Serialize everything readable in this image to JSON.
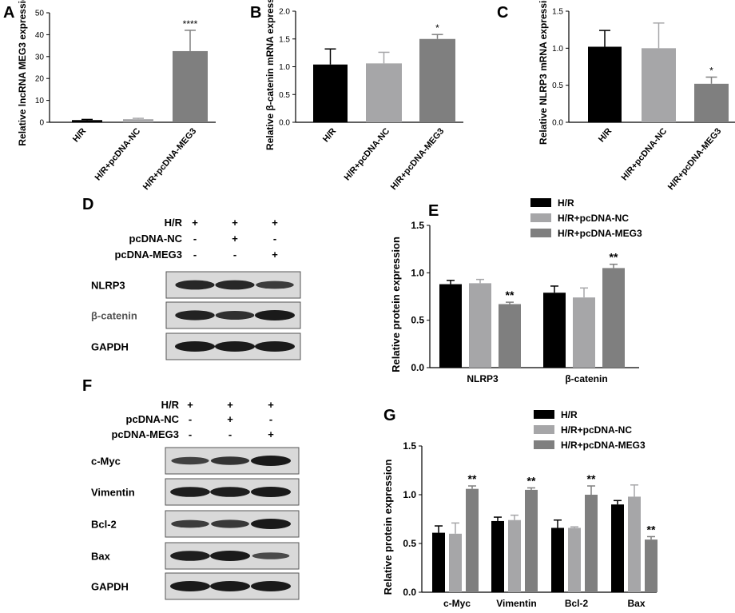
{
  "colors": {
    "c1": "#000000",
    "c2": "#a6a6a8",
    "c3": "#7f7f7f",
    "axis": "#000000"
  },
  "chart_data": [
    {
      "panel": "A",
      "type": "bar",
      "ylabel": "Relative lncRNA MEG3 expression",
      "ylim": [
        0,
        50
      ],
      "yticks": [
        0,
        10,
        20,
        30,
        40,
        50
      ],
      "categories": [
        "H/R",
        "H/R+pcDNA-NC",
        "H/R+pcDNA-MEG3"
      ],
      "values": [
        1.0,
        1.4,
        32.5
      ],
      "errors": [
        0.3,
        0.4,
        9.5
      ],
      "annotations": [
        "",
        "",
        "****"
      ]
    },
    {
      "panel": "B",
      "type": "bar",
      "ylabel": "Relative β-catenin mRNA expression",
      "ylim": [
        0,
        2.0
      ],
      "yticks": [
        "0.0",
        "0.5",
        "1.0",
        "1.5",
        "2.0"
      ],
      "categories": [
        "H/R",
        "H/R+pcDNA-NC",
        "H/R+pcDNA-MEG3"
      ],
      "values": [
        1.04,
        1.06,
        1.5
      ],
      "errors": [
        0.28,
        0.2,
        0.08
      ],
      "annotations": [
        "",
        "",
        "*"
      ]
    },
    {
      "panel": "C",
      "type": "bar",
      "ylabel": "Relative NLRP3 mRNA expression",
      "ylim": [
        0,
        1.5
      ],
      "yticks": [
        "0.0",
        "0.5",
        "1.0",
        "1.5"
      ],
      "categories": [
        "H/R",
        "H/R+pcDNA-NC",
        "H/R+pcDNA-MEG3"
      ],
      "values": [
        1.02,
        1.0,
        0.52
      ],
      "errors": [
        0.22,
        0.34,
        0.09
      ],
      "annotations": [
        "",
        "",
        "*"
      ]
    },
    {
      "panel": "E",
      "type": "bar",
      "ylabel": "Relative protein expression",
      "ylim": [
        0,
        1.5
      ],
      "yticks": [
        "0.0",
        "0.5",
        "1.0",
        "1.5"
      ],
      "categories": [
        "NLRP3",
        "β-catenin"
      ],
      "legend": [
        "H/R",
        "H/R+pcDNA-NC",
        "H/R+pcDNA-MEG3"
      ],
      "series": [
        {
          "name": "H/R",
          "values": [
            0.88,
            0.79
          ],
          "errors": [
            0.04,
            0.07
          ]
        },
        {
          "name": "H/R+pcDNA-NC",
          "values": [
            0.89,
            0.74
          ],
          "errors": [
            0.04,
            0.1
          ]
        },
        {
          "name": "H/R+pcDNA-MEG3",
          "values": [
            0.67,
            1.05
          ],
          "errors": [
            0.02,
            0.04
          ]
        }
      ],
      "annotations": [
        [
          "",
          "",
          "**"
        ],
        [
          "",
          "",
          "**"
        ]
      ]
    },
    {
      "panel": "G",
      "type": "bar",
      "ylabel": "Relative protein expression",
      "ylim": [
        0,
        1.5
      ],
      "yticks": [
        "0.0",
        "0.5",
        "1.0",
        "1.5"
      ],
      "categories": [
        "c-Myc",
        "Vimentin",
        "Bcl-2",
        "Bax"
      ],
      "legend": [
        "H/R",
        "H/R+pcDNA-NC",
        "H/R+pcDNA-MEG3"
      ],
      "series": [
        {
          "name": "H/R",
          "values": [
            0.61,
            0.73,
            0.66,
            0.9
          ],
          "errors": [
            0.07,
            0.04,
            0.08,
            0.04
          ]
        },
        {
          "name": "H/R+pcDNA-NC",
          "values": [
            0.6,
            0.74,
            0.66,
            0.98
          ],
          "errors": [
            0.11,
            0.05,
            0.01,
            0.12
          ]
        },
        {
          "name": "H/R+pcDNA-MEG3",
          "values": [
            1.06,
            1.05,
            1.0,
            0.54
          ],
          "errors": [
            0.03,
            0.02,
            0.09,
            0.03
          ]
        }
      ],
      "annotations": [
        [
          "",
          "",
          "**"
        ],
        [
          "",
          "",
          "**"
        ],
        [
          "",
          "",
          "**"
        ],
        [
          "",
          "",
          "**"
        ]
      ]
    }
  ],
  "panel_labels": {
    "A": "A",
    "B": "B",
    "C": "C",
    "D": "D",
    "E": "E",
    "F": "F",
    "G": "G"
  },
  "blots": {
    "D": {
      "conditions": [
        {
          "label": "H/R",
          "marks": [
            "+",
            "+",
            "+"
          ]
        },
        {
          "label": "pcDNA-NC",
          "marks": [
            "-",
            "+",
            "-"
          ]
        },
        {
          "label": "pcDNA-MEG3",
          "marks": [
            "-",
            "-",
            "+"
          ]
        }
      ],
      "rows": [
        {
          "label": "NLRP3",
          "intensity": [
            0.85,
            0.85,
            0.6
          ]
        },
        {
          "label": "β-catenin",
          "intensity": [
            0.9,
            0.75,
            1.0
          ]
        },
        {
          "label": "GAPDH",
          "intensity": [
            1.0,
            1.0,
            1.0
          ]
        }
      ]
    },
    "F": {
      "conditions": [
        {
          "label": "H/R",
          "marks": [
            "+",
            "+",
            "+"
          ]
        },
        {
          "label": "pcDNA-NC",
          "marks": [
            "-",
            "+",
            "-"
          ]
        },
        {
          "label": "pcDNA-MEG3",
          "marks": [
            "-",
            "-",
            "+"
          ]
        }
      ],
      "rows": [
        {
          "label": "c-Myc",
          "intensity": [
            0.55,
            0.7,
            1.0
          ]
        },
        {
          "label": "Vimentin",
          "intensity": [
            0.95,
            0.95,
            1.0
          ]
        },
        {
          "label": "Bcl-2",
          "intensity": [
            0.6,
            0.65,
            1.0
          ]
        },
        {
          "label": "Bax",
          "intensity": [
            0.95,
            1.0,
            0.45
          ]
        },
        {
          "label": "GAPDH",
          "intensity": [
            1.0,
            1.0,
            1.0
          ]
        }
      ]
    }
  }
}
